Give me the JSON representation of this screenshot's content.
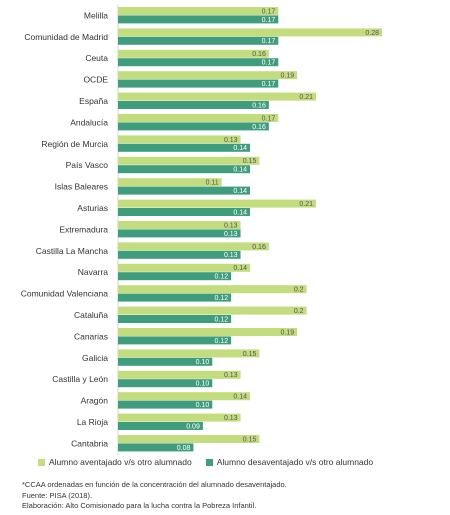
{
  "chart_data": {
    "type": "bar",
    "orientation": "horizontal",
    "categories": [
      "Melilla",
      "Comunidad de Madrid",
      "Ceuta",
      "OCDE",
      "España",
      "Andalucía",
      "Región de Murcia",
      "País Vasco",
      "Islas Baleares",
      "Asturias",
      "Extremadura",
      "Castilla La Mancha",
      "Navarra",
      "Comunidad Valenciana",
      "Cataluña",
      "Canarias",
      "Galicia",
      "Castilla y León",
      "Aragón",
      "La Rioja",
      "Cantabria"
    ],
    "series": [
      {
        "name": "Alumno aventajado v/s otro alumnado",
        "color": "#c3dc7e",
        "values": [
          0.17,
          0.28,
          0.16,
          0.19,
          0.21,
          0.17,
          0.13,
          0.15,
          0.11,
          0.21,
          0.13,
          0.16,
          0.14,
          0.2,
          0.2,
          0.19,
          0.15,
          0.13,
          0.14,
          0.13,
          0.15
        ],
        "labels": [
          "0.17",
          "0.28",
          "0.16",
          "0.19",
          "0.21",
          "0.17",
          "0.13",
          "0.15",
          "0.11",
          "0.21",
          "0.13",
          "0.16",
          "0.14",
          "0.2",
          "0.2",
          "0.19",
          "0.15",
          "0.13",
          "0.14",
          "0.13",
          "0.15"
        ]
      },
      {
        "name": "Alumno desaventajado v/s otro alumnado",
        "color": "#3f9d7e",
        "values": [
          0.17,
          0.17,
          0.17,
          0.17,
          0.16,
          0.16,
          0.14,
          0.14,
          0.14,
          0.14,
          0.13,
          0.13,
          0.12,
          0.12,
          0.12,
          0.12,
          0.1,
          0.1,
          0.1,
          0.09,
          0.08
        ],
        "labels": [
          "0.17",
          "0.17",
          "0.17",
          "0.17",
          "0.16",
          "0.16",
          "0.14",
          "0.14",
          "0.14",
          "0.14",
          "0.13",
          "0.13",
          "0.12",
          "0.12",
          "0.12",
          "0.12",
          "0.10",
          "0.10",
          "0.10",
          "0.09",
          "0.08"
        ]
      }
    ],
    "xlim": [
      0,
      0.28
    ],
    "grid": false,
    "legend_position": "bottom"
  },
  "notes": {
    "line1": "*CCAA ordenadas en función de la concentración del alumnado desaventajado.",
    "line2": "Fuente: PISA (2018).",
    "line3": "Elaboración: Alto Comisionado para la lucha contra la Pobreza Infantil."
  }
}
